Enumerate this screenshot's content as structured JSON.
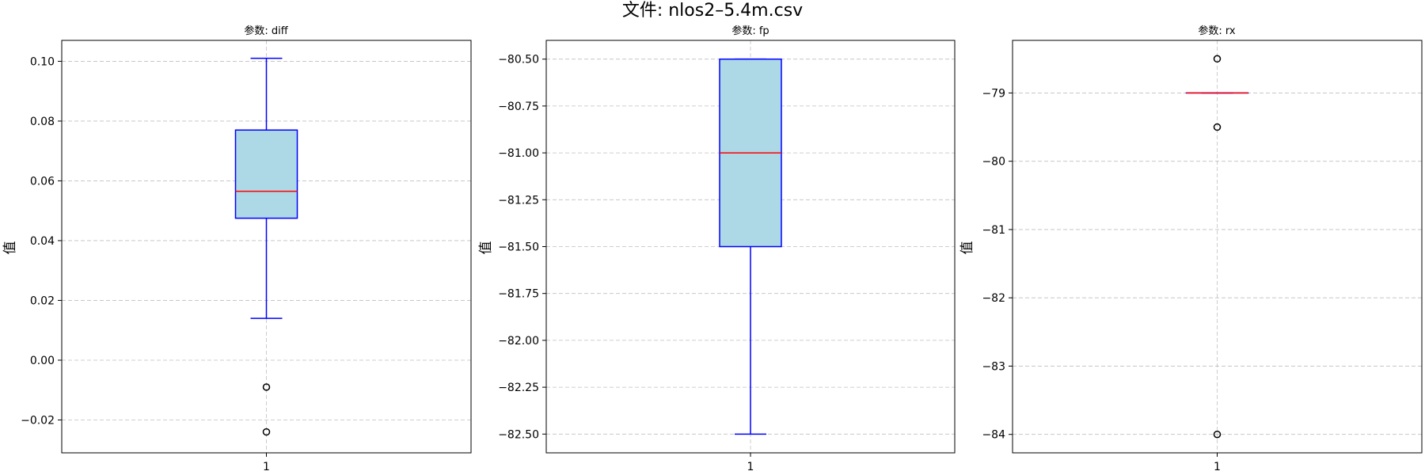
{
  "figure": {
    "title": "文件: nlos2–5.4m.csv"
  },
  "colors": {
    "box_fill": "#add8e6",
    "box_edge": "#0000ff",
    "median": "#ff0000",
    "grid": "#b0b0b0",
    "flier_edge": "#000000"
  },
  "chart_data": [
    {
      "type": "box",
      "title": "参数: diff",
      "xlabel": "",
      "ylabel": "值",
      "categories": [
        "1"
      ],
      "ylim": [
        -0.031,
        0.107
      ],
      "yticks": [
        -0.02,
        0.0,
        0.02,
        0.04,
        0.06,
        0.08,
        0.1
      ],
      "ytick_labels": [
        "−0.02",
        "0.00",
        "0.02",
        "0.04",
        "0.06",
        "0.08",
        "0.10"
      ],
      "grid": true,
      "box": {
        "whisker_low": 0.014,
        "q1": 0.0475,
        "median": 0.0565,
        "q3": 0.077,
        "whisker_high": 0.101
      },
      "outliers": [
        -0.009,
        -0.024
      ]
    },
    {
      "type": "box",
      "title": "参数: fp",
      "xlabel": "",
      "ylabel": "值",
      "categories": [
        "1"
      ],
      "ylim": [
        -82.6,
        -80.4
      ],
      "yticks": [
        -82.5,
        -82.25,
        -82.0,
        -81.75,
        -81.5,
        -81.25,
        -81.0,
        -80.75,
        -80.5
      ],
      "ytick_labels": [
        "−82.50",
        "−82.25",
        "−82.00",
        "−81.75",
        "−81.50",
        "−81.25",
        "−81.00",
        "−80.75",
        "−80.50"
      ],
      "grid": true,
      "box": {
        "whisker_low": -82.5,
        "q1": -81.5,
        "median": -81.0,
        "q3": -80.5,
        "whisker_high": -80.5
      },
      "outliers": []
    },
    {
      "type": "box",
      "title": "参数: rx",
      "xlabel": "",
      "ylabel": "值",
      "categories": [
        "1"
      ],
      "ylim": [
        -84.27,
        -78.23
      ],
      "yticks": [
        -84,
        -83,
        -82,
        -81,
        -80,
        -79
      ],
      "ytick_labels": [
        "−84",
        "−83",
        "−82",
        "−81",
        "−80",
        "−79"
      ],
      "grid": true,
      "box": {
        "whisker_low": -79,
        "q1": -79,
        "median": -79,
        "q3": -79,
        "whisker_high": -79
      },
      "outliers": [
        -78.5,
        -79.5,
        -84
      ]
    }
  ]
}
